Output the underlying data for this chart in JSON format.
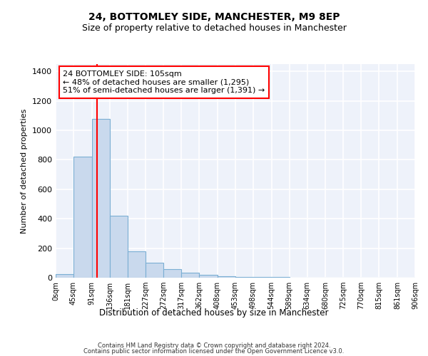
{
  "title1": "24, BOTTOMLEY SIDE, MANCHESTER, M9 8EP",
  "title2": "Size of property relative to detached houses in Manchester",
  "xlabel": "Distribution of detached houses by size in Manchester",
  "ylabel": "Number of detached properties",
  "bin_edges": [
    0,
    45,
    91,
    136,
    181,
    227,
    272,
    317,
    362,
    408,
    453,
    498,
    544,
    589,
    634,
    680,
    725,
    770,
    815,
    861,
    906
  ],
  "bar_heights": [
    25,
    820,
    1080,
    420,
    180,
    100,
    57,
    35,
    18,
    10,
    7,
    6,
    5,
    0,
    0,
    0,
    0,
    0,
    0,
    0
  ],
  "bar_color": "#c9d9ed",
  "bar_edge_color": "#7bafd4",
  "vline_x": 105,
  "vline_color": "red",
  "annotation_text": "24 BOTTOMLEY SIDE: 105sqm\n← 48% of detached houses are smaller (1,295)\n51% of semi-detached houses are larger (1,391) →",
  "annotation_box_color": "white",
  "annotation_box_edge_color": "red",
  "ylim": [
    0,
    1450
  ],
  "yticks": [
    0,
    200,
    400,
    600,
    800,
    1000,
    1200,
    1400
  ],
  "tick_labels": [
    "0sqm",
    "45sqm",
    "91sqm",
    "136sqm",
    "181sqm",
    "227sqm",
    "272sqm",
    "317sqm",
    "362sqm",
    "408sqm",
    "453sqm",
    "498sqm",
    "544sqm",
    "589sqm",
    "634sqm",
    "680sqm",
    "725sqm",
    "770sqm",
    "815sqm",
    "861sqm",
    "906sqm"
  ],
  "bg_color": "#eef2fa",
  "grid_color": "#ffffff",
  "footer1": "Contains HM Land Registry data © Crown copyright and database right 2024.",
  "footer2": "Contains public sector information licensed under the Open Government Licence v3.0."
}
